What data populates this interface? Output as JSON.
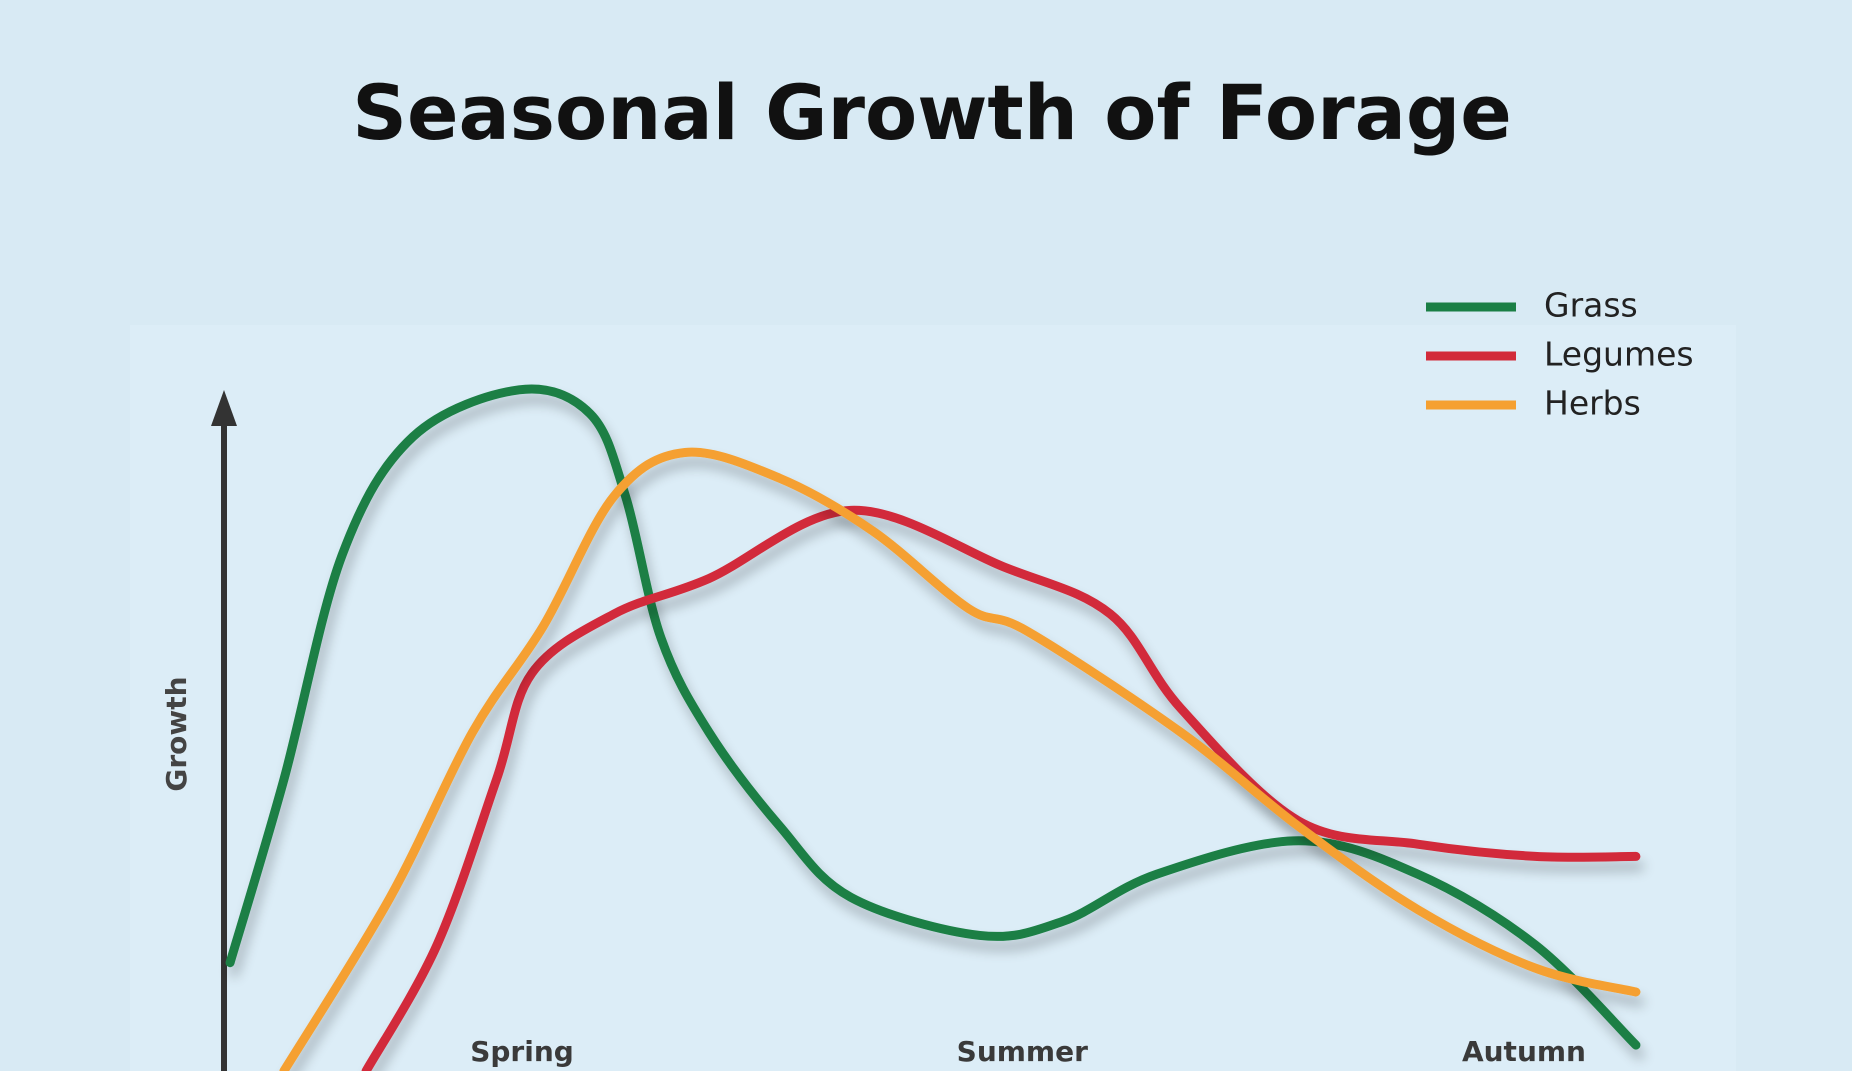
{
  "chart_data": {
    "type": "line",
    "title": "Seasonal Growth of Forage",
    "y_label": "Growth",
    "xlim": [
      0,
      100
    ],
    "ylim": [
      0,
      100
    ],
    "xticks": [
      {
        "value": 21,
        "label": "Spring"
      },
      {
        "value": 56.3,
        "label": "Summer"
      },
      {
        "value": 91.7,
        "label": "Autumn"
      }
    ],
    "legend": "upper right",
    "series": [
      {
        "name": "Grass",
        "color": "#1a7f45",
        "x": [
          0.4,
          4.2,
          8.3,
          13.3,
          20.8,
          25.8,
          28.3,
          30.8,
          34.2,
          39.2,
          44.2,
          53.3,
          59.2,
          65.8,
          75.8,
          84.2,
          92.5,
          99.6
        ],
        "values": [
          15.9,
          42.8,
          75.7,
          93.1,
          100,
          96.5,
          84.4,
          63.6,
          49.7,
          35.9,
          25.5,
          19.9,
          22.0,
          28.9,
          33.8,
          28.9,
          18.5,
          3.8
        ]
      },
      {
        "name": "Legumes",
        "color": "#d22b3a",
        "x": [
          10,
          15,
          19.2,
          21.7,
          27.5,
          34.2,
          44.2,
          55,
          62.5,
          67.5,
          75.8,
          84.2,
          92.5,
          99.6
        ],
        "values": [
          0,
          18.5,
          42.8,
          58.4,
          67.1,
          72.3,
          82.3,
          74.0,
          67.1,
          53.2,
          36.7,
          33.3,
          31.5,
          31.5
        ]
      },
      {
        "name": "Herbs",
        "color": "#f5a031",
        "x": [
          4.2,
          11.7,
          17.5,
          22.5,
          27.5,
          32.5,
          39.2,
          45.8,
          52.5,
          56.7,
          67.5,
          75.8,
          84.2,
          92.5,
          99.6
        ],
        "values": [
          0,
          25.5,
          49.7,
          65.3,
          84.4,
          90.8,
          87.0,
          79.2,
          67.9,
          64.5,
          49.7,
          35.9,
          23.7,
          15.1,
          11.6
        ]
      }
    ]
  }
}
